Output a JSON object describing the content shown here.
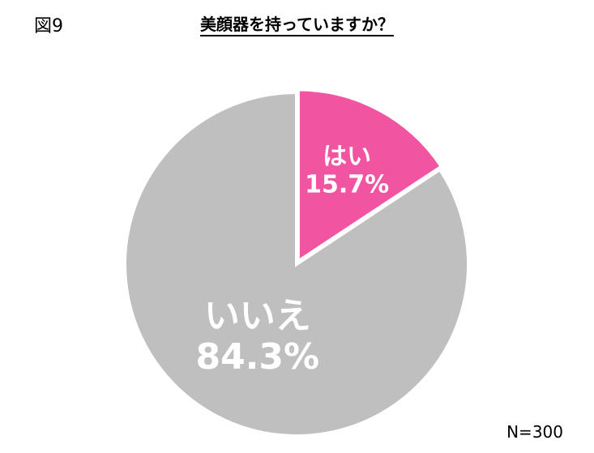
{
  "figure_label": "図9",
  "title": "美顔器を持っていますか？",
  "sample_size": "N=300",
  "chart_data": {
    "type": "pie",
    "slices": [
      {
        "label": "はい",
        "value": 15.7,
        "value_label": "15.7%",
        "color": "#f155a1"
      },
      {
        "label": "いいえ",
        "value": 84.3,
        "value_label": "84.3%",
        "color": "#bfbfbf"
      }
    ],
    "start": "12 o'clock",
    "direction": "clockwise",
    "legend": "none"
  }
}
